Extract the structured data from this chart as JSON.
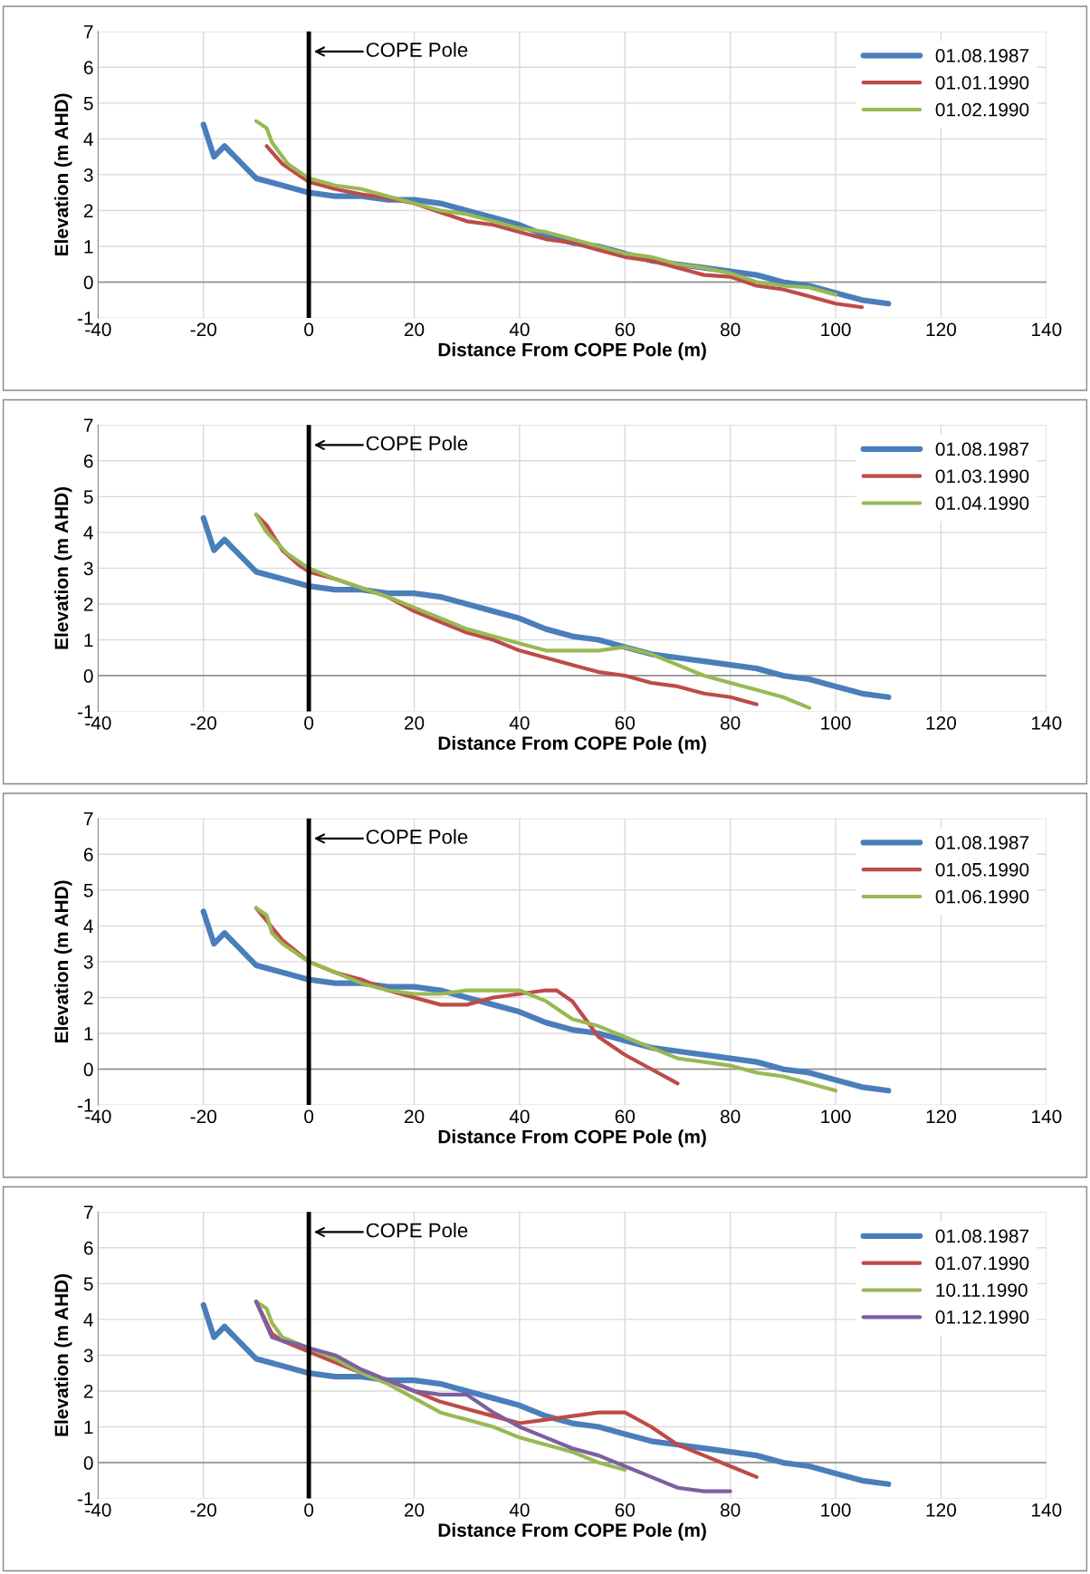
{
  "chart_data": [
    {
      "type": "line",
      "xlabel": "Distance From COPE Pole (m)",
      "ylabel": "Elevation (m AHD)",
      "xlim": [
        -40,
        140
      ],
      "xticks": [
        -40,
        -20,
        0,
        20,
        40,
        60,
        80,
        100,
        120,
        140
      ],
      "ylim": [
        -1,
        7
      ],
      "yticks": [
        -1,
        0,
        1,
        2,
        3,
        4,
        5,
        6,
        7
      ],
      "grid": true,
      "legend": "top right",
      "ref_lines": [
        {
          "axis": "x",
          "value": 0,
          "label": "COPE Pole",
          "color": "#000000"
        }
      ],
      "series": [
        {
          "name": "01.08.1987",
          "color": "#4a7ebb",
          "x": [
            -20,
            -18,
            -16,
            -10,
            -5,
            0,
            5,
            10,
            15,
            20,
            25,
            30,
            35,
            40,
            45,
            50,
            55,
            60,
            65,
            70,
            75,
            80,
            85,
            90,
            95,
            100,
            105,
            110
          ],
          "values": [
            4.4,
            3.5,
            3.8,
            2.9,
            2.7,
            2.5,
            2.4,
            2.4,
            2.3,
            2.3,
            2.2,
            2.0,
            1.8,
            1.6,
            1.3,
            1.1,
            1.0,
            0.8,
            0.6,
            0.5,
            0.4,
            0.3,
            0.2,
            0.0,
            -0.1,
            -0.3,
            -0.5,
            -0.6
          ]
        },
        {
          "name": "01.01.1990",
          "color": "#be4b48",
          "x": [
            -8,
            -5,
            -2,
            0,
            5,
            10,
            15,
            20,
            25,
            30,
            35,
            40,
            45,
            50,
            55,
            60,
            65,
            70,
            75,
            80,
            85,
            90,
            95,
            100,
            105
          ],
          "values": [
            3.8,
            3.3,
            3.0,
            2.8,
            2.6,
            2.45,
            2.35,
            2.2,
            1.95,
            1.7,
            1.6,
            1.4,
            1.2,
            1.1,
            0.9,
            0.7,
            0.6,
            0.4,
            0.2,
            0.15,
            -0.1,
            -0.2,
            -0.4,
            -0.6,
            -0.7
          ]
        },
        {
          "name": "01.02.1990",
          "color": "#98b954",
          "x": [
            -10,
            -8,
            -7,
            -4,
            -2,
            0,
            5,
            10,
            15,
            20,
            25,
            30,
            35,
            40,
            45,
            50,
            55,
            60,
            65,
            70,
            75,
            80,
            85,
            90,
            95,
            100
          ],
          "values": [
            4.5,
            4.3,
            3.9,
            3.3,
            3.1,
            2.9,
            2.7,
            2.6,
            2.4,
            2.2,
            2.0,
            1.9,
            1.7,
            1.5,
            1.4,
            1.2,
            1.0,
            0.8,
            0.7,
            0.5,
            0.4,
            0.25,
            0.0,
            -0.1,
            -0.15,
            -0.35
          ]
        }
      ]
    },
    {
      "type": "line",
      "xlabel": "Distance From COPE Pole (m)",
      "ylabel": "Elevation (m AHD)",
      "xlim": [
        -40,
        140
      ],
      "xticks": [
        -40,
        -20,
        0,
        20,
        40,
        60,
        80,
        100,
        120,
        140
      ],
      "ylim": [
        -1,
        7
      ],
      "yticks": [
        -1,
        0,
        1,
        2,
        3,
        4,
        5,
        6,
        7
      ],
      "grid": true,
      "legend": "top right",
      "ref_lines": [
        {
          "axis": "x",
          "value": 0,
          "label": "COPE Pole",
          "color": "#000000"
        }
      ],
      "series": [
        {
          "name": "01.08.1987",
          "color": "#4a7ebb",
          "x": [
            -20,
            -18,
            -16,
            -10,
            -5,
            0,
            5,
            10,
            15,
            20,
            25,
            30,
            35,
            40,
            45,
            50,
            55,
            60,
            65,
            70,
            75,
            80,
            85,
            90,
            95,
            100,
            105,
            110
          ],
          "values": [
            4.4,
            3.5,
            3.8,
            2.9,
            2.7,
            2.5,
            2.4,
            2.4,
            2.3,
            2.3,
            2.2,
            2.0,
            1.8,
            1.6,
            1.3,
            1.1,
            1.0,
            0.8,
            0.6,
            0.5,
            0.4,
            0.3,
            0.2,
            0.0,
            -0.1,
            -0.3,
            -0.5,
            -0.6
          ]
        },
        {
          "name": "01.03.1990",
          "color": "#be4b48",
          "x": [
            -10,
            -8,
            -5,
            -2,
            0,
            5,
            10,
            15,
            20,
            25,
            30,
            35,
            40,
            45,
            50,
            55,
            60,
            65,
            70,
            75,
            80,
            85
          ],
          "values": [
            4.5,
            4.2,
            3.5,
            3.1,
            2.9,
            2.7,
            2.45,
            2.2,
            1.8,
            1.5,
            1.2,
            1.0,
            0.7,
            0.5,
            0.3,
            0.1,
            0.0,
            -0.2,
            -0.3,
            -0.5,
            -0.6,
            -0.8
          ]
        },
        {
          "name": "01.04.1990",
          "color": "#98b954",
          "x": [
            -10,
            -8,
            -4,
            0,
            5,
            10,
            15,
            20,
            25,
            30,
            35,
            40,
            45,
            50,
            55,
            60,
            65,
            70,
            75,
            80,
            85,
            90,
            95
          ],
          "values": [
            4.5,
            4.0,
            3.4,
            3.0,
            2.7,
            2.45,
            2.2,
            1.9,
            1.6,
            1.3,
            1.1,
            0.9,
            0.7,
            0.7,
            0.7,
            0.8,
            0.6,
            0.3,
            0.0,
            -0.2,
            -0.4,
            -0.6,
            -0.9
          ]
        }
      ]
    },
    {
      "type": "line",
      "xlabel": "Distance From COPE Pole (m)",
      "ylabel": "Elevation (m AHD)",
      "xlim": [
        -40,
        140
      ],
      "xticks": [
        -40,
        -20,
        0,
        20,
        40,
        60,
        80,
        100,
        120,
        140
      ],
      "ylim": [
        -1,
        7
      ],
      "yticks": [
        -1,
        0,
        1,
        2,
        3,
        4,
        5,
        6,
        7
      ],
      "grid": true,
      "legend": "top right",
      "ref_lines": [
        {
          "axis": "x",
          "value": 0,
          "label": "COPE Pole",
          "color": "#000000"
        }
      ],
      "series": [
        {
          "name": "01.08.1987",
          "color": "#4a7ebb",
          "x": [
            -20,
            -18,
            -16,
            -10,
            -5,
            0,
            5,
            10,
            15,
            20,
            25,
            30,
            35,
            40,
            45,
            50,
            55,
            60,
            65,
            70,
            75,
            80,
            85,
            90,
            95,
            100,
            105,
            110
          ],
          "values": [
            4.4,
            3.5,
            3.8,
            2.9,
            2.7,
            2.5,
            2.4,
            2.4,
            2.3,
            2.3,
            2.2,
            2.0,
            1.8,
            1.6,
            1.3,
            1.1,
            1.0,
            0.8,
            0.6,
            0.5,
            0.4,
            0.3,
            0.2,
            0.0,
            -0.1,
            -0.3,
            -0.5,
            -0.6
          ]
        },
        {
          "name": "01.05.1990",
          "color": "#be4b48",
          "x": [
            -10,
            -5,
            0,
            5,
            10,
            15,
            20,
            25,
            30,
            35,
            40,
            45,
            47,
            50,
            55,
            60,
            65,
            70
          ],
          "values": [
            4.5,
            3.6,
            3.0,
            2.7,
            2.5,
            2.2,
            2.0,
            1.8,
            1.8,
            2.0,
            2.1,
            2.2,
            2.2,
            1.9,
            0.9,
            0.4,
            0.0,
            -0.4
          ]
        },
        {
          "name": "01.06.1990",
          "color": "#98b954",
          "x": [
            -10,
            -8,
            -7,
            -5,
            0,
            5,
            10,
            15,
            20,
            25,
            30,
            35,
            40,
            45,
            50,
            55,
            60,
            65,
            70,
            75,
            80,
            85,
            90,
            95,
            100
          ],
          "values": [
            4.5,
            4.3,
            3.8,
            3.5,
            3.0,
            2.7,
            2.4,
            2.2,
            2.1,
            2.1,
            2.2,
            2.2,
            2.2,
            1.9,
            1.4,
            1.2,
            0.9,
            0.6,
            0.3,
            0.2,
            0.1,
            -0.1,
            -0.2,
            -0.4,
            -0.6
          ]
        }
      ]
    },
    {
      "type": "line",
      "xlabel": "Distance From COPE Pole (m)",
      "ylabel": "Elevation (m AHD)",
      "xlim": [
        -40,
        140
      ],
      "xticks": [
        -40,
        -20,
        0,
        20,
        40,
        60,
        80,
        100,
        120,
        140
      ],
      "ylim": [
        -1,
        7
      ],
      "yticks": [
        -1,
        0,
        1,
        2,
        3,
        4,
        5,
        6,
        7
      ],
      "grid": true,
      "legend": "top right",
      "ref_lines": [
        {
          "axis": "x",
          "value": 0,
          "label": "COPE Pole",
          "color": "#000000"
        }
      ],
      "series": [
        {
          "name": "01.08.1987",
          "color": "#4a7ebb",
          "x": [
            -20,
            -18,
            -16,
            -10,
            -5,
            0,
            5,
            10,
            15,
            20,
            25,
            30,
            35,
            40,
            45,
            50,
            55,
            60,
            65,
            70,
            75,
            80,
            85,
            90,
            95,
            100,
            105,
            110
          ],
          "values": [
            4.4,
            3.5,
            3.8,
            2.9,
            2.7,
            2.5,
            2.4,
            2.4,
            2.3,
            2.3,
            2.2,
            2.0,
            1.8,
            1.6,
            1.3,
            1.1,
            1.0,
            0.8,
            0.6,
            0.5,
            0.4,
            0.3,
            0.2,
            0.0,
            -0.1,
            -0.3,
            -0.5,
            -0.6
          ]
        },
        {
          "name": "01.07.1990",
          "color": "#be4b48",
          "x": [
            -10,
            -7,
            -5,
            0,
            5,
            10,
            15,
            20,
            25,
            30,
            35,
            40,
            45,
            50,
            55,
            60,
            65,
            70,
            75,
            80,
            85
          ],
          "values": [
            4.5,
            3.6,
            3.4,
            3.1,
            2.8,
            2.5,
            2.3,
            2.0,
            1.7,
            1.5,
            1.3,
            1.1,
            1.2,
            1.3,
            1.4,
            1.4,
            1.0,
            0.5,
            0.2,
            -0.1,
            -0.4
          ]
        },
        {
          "name": "10.11.1990",
          "color": "#98b954",
          "x": [
            -10,
            -8,
            -7,
            -5,
            0,
            5,
            10,
            15,
            20,
            25,
            30,
            35,
            40,
            45,
            50,
            55,
            60
          ],
          "values": [
            4.5,
            4.3,
            3.9,
            3.5,
            3.2,
            2.9,
            2.5,
            2.2,
            1.8,
            1.4,
            1.2,
            1.0,
            0.7,
            0.5,
            0.3,
            0.0,
            -0.2
          ]
        },
        {
          "name": "01.12.1990",
          "color": "#7d5fa0",
          "x": [
            -10,
            -7,
            -5,
            -2,
            0,
            5,
            10,
            15,
            20,
            25,
            30,
            35,
            40,
            45,
            50,
            55,
            60,
            65,
            70,
            75,
            80
          ],
          "values": [
            4.5,
            3.5,
            3.4,
            3.3,
            3.2,
            3.0,
            2.6,
            2.3,
            2.0,
            1.9,
            1.9,
            1.4,
            1.0,
            0.7,
            0.4,
            0.2,
            -0.1,
            -0.4,
            -0.7,
            -0.8,
            -0.8
          ]
        }
      ]
    }
  ]
}
